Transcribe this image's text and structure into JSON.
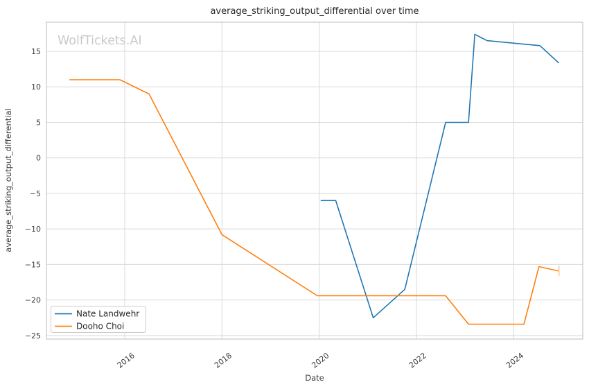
{
  "chart_data": {
    "type": "line",
    "title": "average_striking_output_differential over time",
    "watermark": "WolfTickets.AI",
    "xlabel": "Date",
    "ylabel": "average_striking_output_differential",
    "xlim": [
      2014.39,
      2025.42
    ],
    "ylim": [
      -25.5,
      19.1
    ],
    "xticks": [
      2016,
      2018,
      2020,
      2022,
      2024
    ],
    "yticks": [
      15,
      10,
      5,
      0,
      -5,
      -10,
      -15,
      -20,
      -25
    ],
    "grid": true,
    "legend_position": "lower left",
    "series": [
      {
        "name": "Nate Landwehr",
        "color": "#1f77b4",
        "points": [
          [
            2020.04,
            -6.0
          ],
          [
            2020.34,
            -6.0
          ],
          [
            2021.11,
            -22.5
          ],
          [
            2021.76,
            -18.5
          ],
          [
            2022.6,
            5.0
          ],
          [
            2023.07,
            5.0
          ],
          [
            2023.2,
            17.4
          ],
          [
            2023.45,
            16.5
          ],
          [
            2024.54,
            15.8
          ],
          [
            2024.92,
            13.4
          ]
        ],
        "end_cap": false
      },
      {
        "name": "Dooho Choi",
        "color": "#ff7f0e",
        "points": [
          [
            2014.87,
            11.0
          ],
          [
            2015.9,
            11.0
          ],
          [
            2016.5,
            9.0
          ],
          [
            2018.0,
            -10.8
          ],
          [
            2019.96,
            -19.4
          ],
          [
            2022.6,
            -19.4
          ],
          [
            2023.07,
            -23.4
          ],
          [
            2024.21,
            -23.4
          ],
          [
            2024.52,
            -15.3
          ],
          [
            2024.91,
            -15.9
          ]
        ],
        "end_cap": true
      }
    ]
  }
}
